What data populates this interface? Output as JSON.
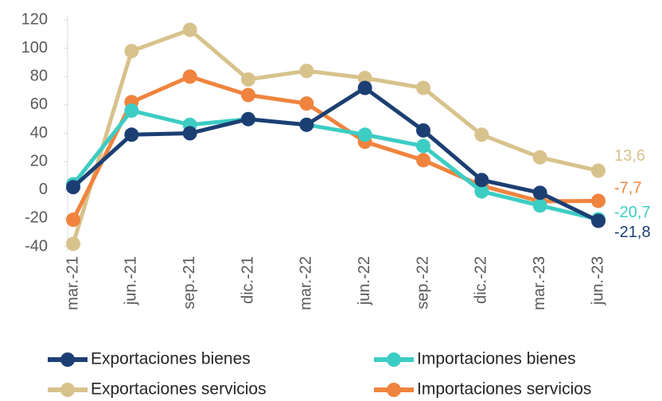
{
  "chart_data": {
    "type": "line",
    "categories": [
      "mar.-21",
      "jun.-21",
      "sep.-21",
      "dic.-21",
      "mar.-22",
      "jun.-22",
      "sep.-22",
      "dic.-22",
      "mar.-23",
      "jun.-23"
    ],
    "series": [
      {
        "name": "Exportaciones bienes",
        "color": "#1c3f73",
        "values": [
          2,
          39,
          40,
          50,
          46,
          72,
          42,
          7,
          -2,
          -21.8
        ],
        "value_labels": [
          null,
          null,
          null,
          null,
          null,
          null,
          null,
          null,
          null,
          "-21,8"
        ]
      },
      {
        "name": "Importaciones bienes",
        "color": "#3ccdc4",
        "values": [
          4,
          56,
          46,
          50,
          46,
          39,
          31,
          -1,
          -11,
          -20.7
        ],
        "value_labels": [
          null,
          null,
          null,
          null,
          null,
          null,
          null,
          null,
          null,
          "-20,7"
        ]
      },
      {
        "name": "Exportaciones servicios",
        "color": "#d8c28c",
        "values": [
          -38,
          98,
          113,
          78,
          84,
          79,
          72,
          39,
          23,
          13.6
        ],
        "value_labels": [
          null,
          null,
          null,
          null,
          null,
          null,
          null,
          null,
          null,
          "13,6"
        ]
      },
      {
        "name": "Importaciones servicios",
        "color": "#f0843e",
        "values": [
          -21,
          62,
          80,
          67,
          61,
          34,
          21,
          3,
          -8,
          -7.7
        ],
        "value_labels": [
          null,
          null,
          null,
          null,
          null,
          null,
          null,
          null,
          null,
          "-7,7"
        ]
      }
    ],
    "ylim": [
      -40,
      120
    ],
    "yticks": [
      -40,
      -20,
      0,
      20,
      40,
      60,
      80,
      100,
      120
    ],
    "grid": false
  }
}
